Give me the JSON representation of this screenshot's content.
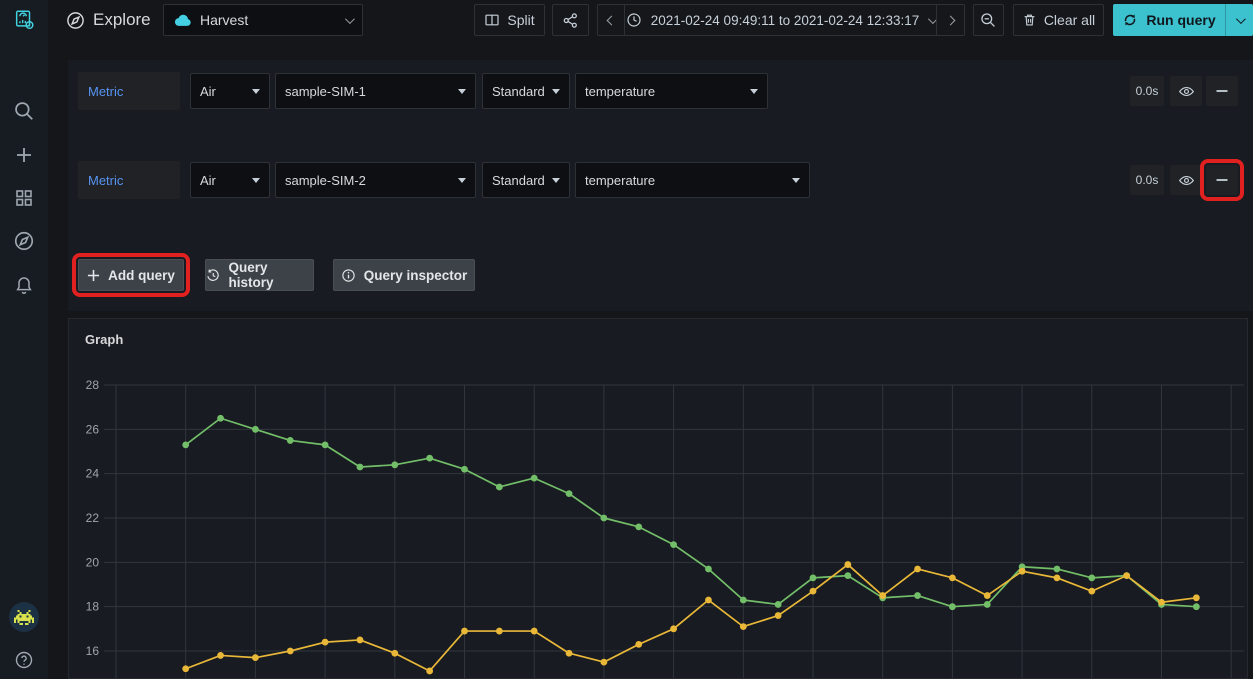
{
  "topbar": {
    "title": "Explore",
    "datasource_label": "Harvest",
    "split_label": "Split",
    "time_range": "2021-02-24 09:49:11 to 2021-02-24 12:33:17",
    "clear_all_label": "Clear all",
    "run_query_label": "Run query"
  },
  "sidebar": {
    "top_icons": [
      "app-logo",
      "search",
      "add",
      "dashboards",
      "explore",
      "alerting"
    ],
    "bottom_icons": [
      "user-avatar",
      "help"
    ]
  },
  "query_rows": [
    {
      "row_label": "Metric",
      "source": "Air",
      "device": "sample-SIM-1",
      "agg": "Standard",
      "field": "temperature",
      "duration": "0.0s"
    },
    {
      "row_label": "Metric",
      "source": "Air",
      "device": "sample-SIM-2",
      "agg": "Standard",
      "field": "temperature",
      "duration": "0.0s"
    }
  ],
  "toolbar": {
    "add_query_label": "Add query",
    "query_history_label": "Query history",
    "query_inspector_label": "Query inspector"
  },
  "graph_panel": {
    "title": "Graph"
  },
  "chart_data": {
    "type": "line",
    "title": "Graph",
    "xlabel": "",
    "ylabel": "",
    "x_time_range": "2021-02-24 09:49:11 to 2021-02-24 12:33:17",
    "x_axis_labels_visible": false,
    "yticks": [
      28,
      26,
      24,
      22,
      20,
      18,
      16
    ],
    "ylim_visible": [
      14.7,
      29
    ],
    "grid": true,
    "legend_visible": false,
    "markers": true,
    "series": [
      {
        "name": "sample-SIM-1 temperature",
        "color": "#73BF69",
        "values": [
          25.3,
          26.5,
          26.0,
          25.5,
          25.3,
          24.3,
          24.4,
          24.7,
          24.2,
          23.4,
          23.8,
          23.1,
          22.0,
          21.6,
          20.8,
          19.7,
          18.3,
          18.1,
          19.3,
          19.4,
          18.4,
          18.5,
          18.0,
          18.1,
          19.8,
          19.7,
          19.3,
          19.4,
          18.1,
          18.0
        ]
      },
      {
        "name": "sample-SIM-2 temperature",
        "color": "#EAB839",
        "values": [
          15.2,
          15.8,
          15.7,
          16.0,
          16.4,
          16.5,
          15.9,
          15.1,
          16.9,
          16.9,
          16.9,
          15.9,
          15.5,
          16.3,
          17.0,
          18.3,
          17.1,
          17.6,
          18.7,
          19.9,
          18.5,
          19.7,
          19.3,
          18.5,
          19.6,
          19.3,
          18.7,
          19.4,
          18.2,
          18.4
        ]
      }
    ]
  },
  "colors": {
    "accent_teal": "#3bc2ce",
    "highlight_red": "#e0211f",
    "metric_blue": "#5794F2",
    "series_green": "#73BF69",
    "series_yellow": "#EAB839",
    "grid_line": "#31363d"
  }
}
